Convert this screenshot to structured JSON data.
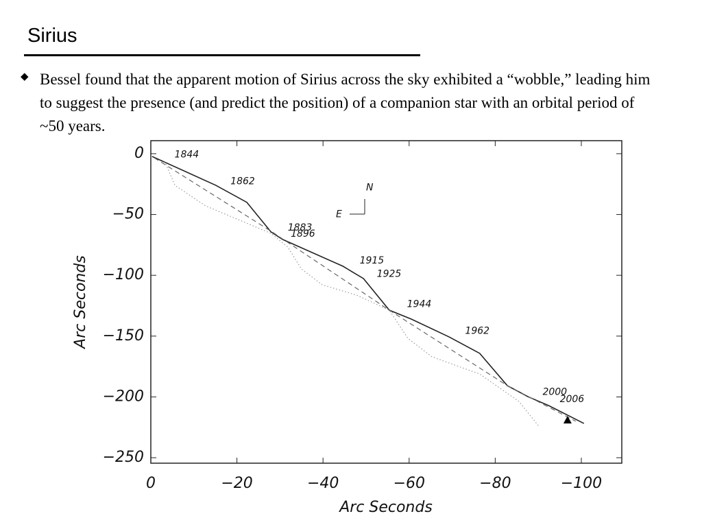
{
  "slide": {
    "title": "Sirius",
    "bullet": "Bessel found that the apparent motion of Sirius across the sky exhibited a “wobble,” leading him to suggest the presence (and predict the position) of a companion star with an orbital period of ~50 years."
  },
  "chart_data": {
    "type": "line",
    "xlabel": "Arc Seconds",
    "ylabel": "Arc Seconds",
    "xlim": [
      0,
      -109.4
    ],
    "ylim": [
      -254.5,
      10.7
    ],
    "xticks": [
      0,
      {
        "value": -20,
        "label": "−20"
      },
      {
        "value": -40,
        "label": "−40"
      },
      {
        "value": -60,
        "label": "−60"
      },
      {
        "value": -80,
        "label": "−80"
      },
      {
        "value": -100,
        "label": "−100"
      }
    ],
    "yticks": [
      0,
      {
        "value": -50,
        "label": "−50"
      },
      {
        "value": -100,
        "label": "−100"
      },
      {
        "value": -150,
        "label": "−150"
      },
      {
        "value": -200,
        "label": "−200"
      },
      {
        "value": -250,
        "label": "−250"
      }
    ],
    "series": [
      {
        "color": "#222",
        "dash": "solid",
        "x": [
          -0.3,
          -15.1,
          -22.3,
          -27.9,
          -30.6,
          -44.6,
          -49.4,
          -55.4,
          -60.5,
          -69.3,
          -76.4,
          -82.8,
          -87.6,
          -92.4,
          -100.6
        ],
        "values": [
          -2.3,
          -26,
          -40,
          -64.3,
          -70.5,
          -92.5,
          -102.7,
          -128.7,
          -136,
          -150.7,
          -164.2,
          -190.7,
          -199.8,
          -207.1,
          -221.8
        ]
      },
      {
        "color": "#666",
        "dash": "dashed",
        "x": [
          -0.8,
          -27.9,
          -55.4,
          -82.8,
          -98.7
        ],
        "values": [
          -3.4,
          -63.7,
          -128.7,
          -190.7,
          -220
        ]
      },
      {
        "color": "#999",
        "dash": "dotted",
        "x": [
          -3.2,
          -5.6,
          -12.7,
          -27.9,
          -31.8,
          -35,
          -39.8,
          -47.8,
          -55.4,
          -59.7,
          -65.3,
          -76.4,
          -85.5,
          -90
        ],
        "values": [
          -6.2,
          -26,
          -42.9,
          -65.5,
          -76.7,
          -94.8,
          -107.8,
          -116.3,
          -128.7,
          -151.8,
          -167,
          -181.2,
          -203.7,
          -223.5
        ]
      }
    ],
    "marker": {
      "x": -96.8,
      "y": -219
    },
    "annotations": [
      {
        "text": "1844",
        "x": -5.5,
        "y": -1
      },
      {
        "text": "1862",
        "x": -18.5,
        "y": -23
      },
      {
        "text": "1883",
        "x": -31.8,
        "y": -61
      },
      {
        "text": "1896",
        "x": -32.5,
        "y": -66
      },
      {
        "text": "1915",
        "x": -48.5,
        "y": -88
      },
      {
        "text": "1925",
        "x": -52.5,
        "y": -99
      },
      {
        "text": "1944",
        "x": -59.5,
        "y": -124
      },
      {
        "text": "1962",
        "x": -73,
        "y": -146
      },
      {
        "text": "2000",
        "x": -91,
        "y": -196
      },
      {
        "text": "2006",
        "x": -95,
        "y": -202
      },
      {
        "text": "N",
        "x": -50,
        "y": -28
      },
      {
        "text": "E",
        "x": -43,
        "y": -50
      }
    ]
  }
}
